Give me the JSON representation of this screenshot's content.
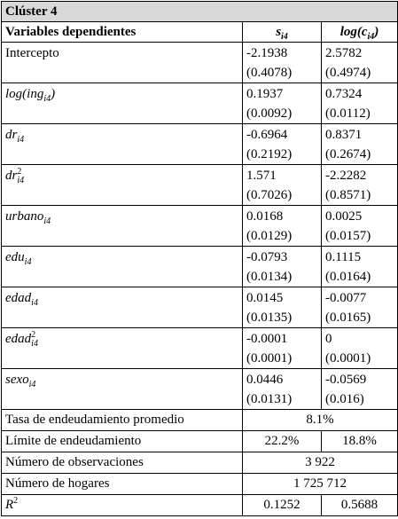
{
  "title": "Clúster 4",
  "header": {
    "variables": "Variables dependientes",
    "col1": {
      "name": "s",
      "sub": "i4"
    },
    "col2": {
      "name": "log(c",
      "sub": "i4",
      "close": ")"
    }
  },
  "rows": [
    {
      "label": {
        "text": "Intercepto"
      },
      "s": [
        "-2.1938",
        "(0.4078)"
      ],
      "log_c": [
        "2.5782",
        "(0.4974)"
      ]
    },
    {
      "label": {
        "name": "log(ing",
        "sub": "i4",
        "close": ")"
      },
      "s": [
        "0.1937",
        "(0.0092)"
      ],
      "log_c": [
        "0.7324",
        "(0.0112)"
      ]
    },
    {
      "label": {
        "name": "dr",
        "sub": "i4"
      },
      "s": [
        "-0.6964",
        "(0.2192)"
      ],
      "log_c": [
        "0.8371",
        "(0.2674)"
      ]
    },
    {
      "label": {
        "name": "dr",
        "sub": "i4",
        "sup": "2"
      },
      "s": [
        "1.571",
        "(0.7026)"
      ],
      "log_c": [
        "-2.2282",
        "(0.8571)"
      ]
    },
    {
      "label": {
        "name": "urbano",
        "sub": "i4"
      },
      "s": [
        "0.0168",
        "(0.0129)"
      ],
      "log_c": [
        "0.0025",
        "(0.0157)"
      ]
    },
    {
      "label": {
        "name": "edu",
        "sub": "i4"
      },
      "s": [
        "-0.0793",
        "(0.0134)"
      ],
      "log_c": [
        "0.1115",
        "(0.0164)"
      ]
    },
    {
      "label": {
        "name": "edad",
        "sub": "i4"
      },
      "s": [
        "0.0145",
        "(0.0135)"
      ],
      "log_c": [
        "-0.0077",
        "(0.0165)"
      ]
    },
    {
      "label": {
        "name": "edad",
        "sub": "i4",
        "sup": "2"
      },
      "s": [
        "-0.0001",
        "(0.0001)"
      ],
      "log_c": [
        "0",
        "(0.0001)"
      ]
    },
    {
      "label": {
        "name": "sexo",
        "sub": "i4"
      },
      "s": [
        "0.0446",
        "(0.0131)"
      ],
      "log_c": [
        "-0.0569",
        "(0.016)"
      ]
    }
  ],
  "footer": [
    {
      "label": {
        "text": "Tasa de endeudamiento promedio"
      },
      "values": [
        "8.1%"
      ]
    },
    {
      "label": {
        "text": "Límite de endeudamiento"
      },
      "values": [
        "22.2%",
        "18.8%"
      ]
    },
    {
      "label": {
        "text": "Número de observaciones"
      },
      "values": [
        "3 922"
      ]
    },
    {
      "label": {
        "text": "Número de hogares"
      },
      "values": [
        "1 725 712"
      ]
    },
    {
      "label": {
        "name": "R",
        "sup": "2"
      },
      "values": [
        "0.1252",
        "0.5688"
      ]
    }
  ]
}
